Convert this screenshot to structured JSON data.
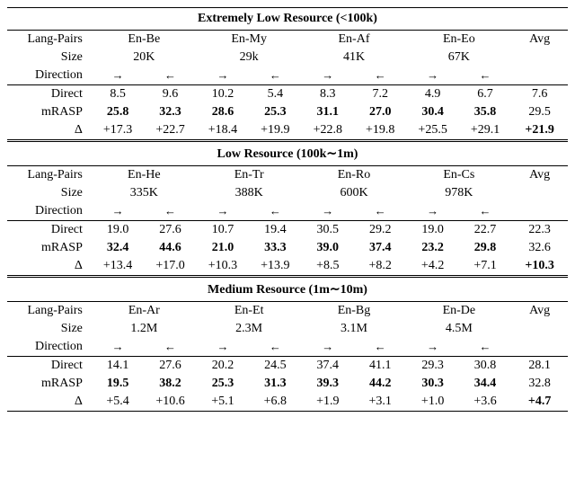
{
  "arrows": {
    "r": "→",
    "l": "←"
  },
  "labels": {
    "langpairs": "Lang-Pairs",
    "size": "Size",
    "direction": "Direction",
    "direct": "Direct",
    "mrasp": "mRASP",
    "delta": "Δ",
    "avg": "Avg"
  },
  "sections": [
    {
      "title": "Extremely Low Resource (<100k)",
      "pairs": [
        "En-Be",
        "En-My",
        "En-Af",
        "En-Eo"
      ],
      "sizes": [
        "20K",
        "29k",
        "41K",
        "67K"
      ],
      "direct": [
        "8.5",
        "9.6",
        "10.2",
        "5.4",
        "8.3",
        "7.2",
        "4.9",
        "6.7"
      ],
      "direct_avg": "7.6",
      "mrasp": [
        "25.8",
        "32.3",
        "28.6",
        "25.3",
        "31.1",
        "27.0",
        "30.4",
        "35.8"
      ],
      "mrasp_avg": "29.5",
      "delta": [
        "+17.3",
        "+22.7",
        "+18.4",
        "+19.9",
        "+22.8",
        "+19.8",
        "+25.5",
        "+29.1"
      ],
      "delta_avg": "+21.9"
    },
    {
      "title": "Low Resource (100k∼1m)",
      "pairs": [
        "En-He",
        "En-Tr",
        "En-Ro",
        "En-Cs"
      ],
      "sizes": [
        "335K",
        "388K",
        "600K",
        "978K"
      ],
      "direct": [
        "19.0",
        "27.6",
        "10.7",
        "19.4",
        "30.5",
        "29.2",
        "19.0",
        "22.7"
      ],
      "direct_avg": "22.3",
      "mrasp": [
        "32.4",
        "44.6",
        "21.0",
        "33.3",
        "39.0",
        "37.4",
        "23.2",
        "29.8"
      ],
      "mrasp_avg": "32.6",
      "delta": [
        "+13.4",
        "+17.0",
        "+10.3",
        "+13.9",
        "+8.5",
        "+8.2",
        "+4.2",
        "+7.1"
      ],
      "delta_avg": "+10.3"
    },
    {
      "title": "Medium Resource (1m∼10m)",
      "pairs": [
        "En-Ar",
        "En-Et",
        "En-Bg",
        "En-De"
      ],
      "sizes": [
        "1.2M",
        "2.3M",
        "3.1M",
        "4.5M"
      ],
      "direct": [
        "14.1",
        "27.6",
        "20.2",
        "24.5",
        "37.4",
        "41.1",
        "29.3",
        "30.8"
      ],
      "direct_avg": "28.1",
      "mrasp": [
        "19.5",
        "38.2",
        "25.3",
        "31.3",
        "39.3",
        "44.2",
        "30.3",
        "34.4"
      ],
      "mrasp_avg": "32.8",
      "delta": [
        "+5.4",
        "+10.6",
        "+5.1",
        "+6.8",
        "+1.9",
        "+3.1",
        "+1.0",
        "+3.6"
      ],
      "delta_avg": "+4.7"
    }
  ]
}
